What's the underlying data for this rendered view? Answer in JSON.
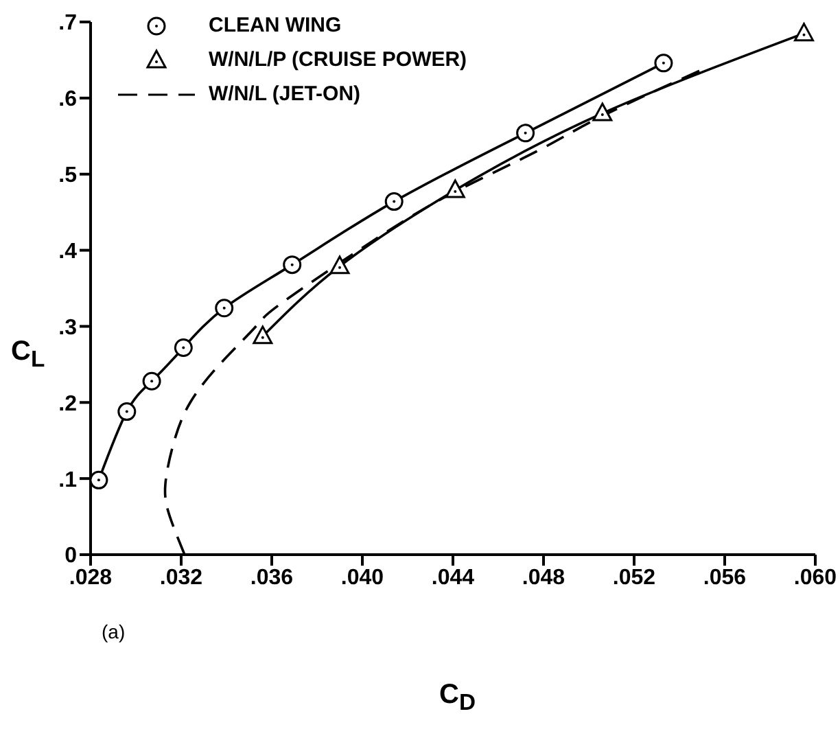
{
  "chart_data": {
    "type": "line",
    "xlabel": "C$_{D}$",
    "ylabel": "C$_{L}$",
    "xlim": [
      0.028,
      0.06
    ],
    "ylim": [
      0,
      0.7
    ],
    "xticks": [
      {
        "value": 0.028,
        "label": ".028"
      },
      {
        "value": 0.032,
        "label": ".032"
      },
      {
        "value": 0.036,
        "label": ".036"
      },
      {
        "value": 0.04,
        "label": ".040"
      },
      {
        "value": 0.044,
        "label": ".044"
      },
      {
        "value": 0.048,
        "label": ".048"
      },
      {
        "value": 0.052,
        "label": ".052"
      },
      {
        "value": 0.056,
        "label": ".056"
      },
      {
        "value": 0.06,
        "label": ".060"
      }
    ],
    "yticks": [
      0,
      {
        "value": 0.1,
        "label": ".1"
      },
      {
        "value": 0.2,
        "label": ".2"
      },
      {
        "value": 0.3,
        "label": ".3"
      },
      {
        "value": 0.4,
        "label": ".4"
      },
      {
        "value": 0.5,
        "label": ".5"
      },
      {
        "value": 0.6,
        "label": ".6"
      },
      {
        "value": 0.7,
        "label": ".7"
      }
    ],
    "grid": false,
    "legend": "top left",
    "annotations": [
      "(a)"
    ],
    "series": [
      {
        "name": "CLEAN WING",
        "color": "#000000",
        "marker": "circle",
        "line_style": "solid",
        "x": [
          0.02836,
          0.0296,
          0.0307,
          0.0321,
          0.0339,
          0.0369,
          0.0414,
          0.0472,
          0.0533
        ],
        "values": [
          0.098,
          0.188,
          0.228,
          0.272,
          0.324,
          0.381,
          0.464,
          0.554,
          0.646
        ]
      },
      {
        "name": "W/N/L/P (CRUISE POWER)",
        "color": "#000000",
        "marker": "triangle",
        "line_style": "solid",
        "x": [
          0.0356,
          0.039,
          0.0441,
          0.0506,
          0.0595
        ],
        "values": [
          0.287,
          0.379,
          0.479,
          0.58,
          0.685
        ]
      },
      {
        "name": "W/N/L (JET-ON)",
        "color": "#000000",
        "marker": "none",
        "line_style": "dashed",
        "x": [
          0.03215,
          0.0315,
          0.0313,
          0.0317,
          0.0324,
          0.0337,
          0.0353,
          0.0365,
          0.0406,
          0.0441,
          0.0477,
          0.0505,
          0.0549
        ],
        "values": [
          0,
          0.05,
          0.092,
          0.15,
          0.2,
          0.25,
          0.3,
          0.332,
          0.415,
          0.477,
          0.53,
          0.575,
          0.636
        ]
      }
    ]
  }
}
